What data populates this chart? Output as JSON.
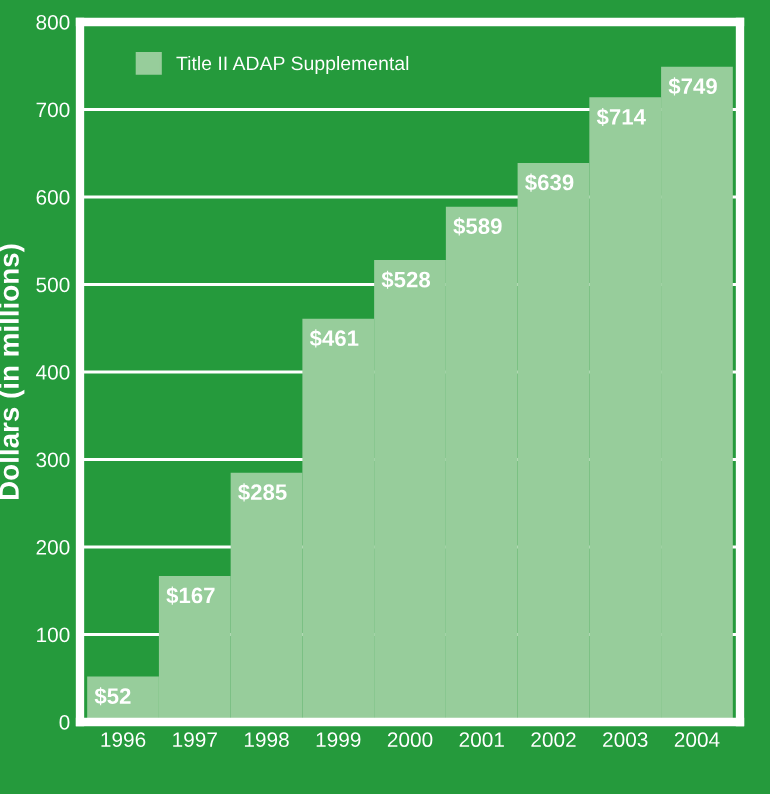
{
  "chart_data": {
    "type": "bar",
    "ylabel": "Dollars (in millions)",
    "categories": [
      "1996",
      "1997",
      "1998",
      "1999",
      "2000",
      "2001",
      "2002",
      "2003",
      "2004"
    ],
    "series": [
      {
        "name": "Title II ADAP Supplemental",
        "color": "#97cd9b",
        "values": [
          52,
          167,
          285,
          461,
          528,
          589,
          639,
          714,
          749
        ],
        "value_labels": [
          "$52",
          "$167",
          "$285",
          "$461",
          "$528",
          "$589",
          "$639",
          "$714",
          "$749"
        ]
      }
    ],
    "ylim": [
      0,
      800
    ],
    "yticks": [
      0,
      100,
      200,
      300,
      400,
      500,
      600,
      700,
      800
    ],
    "grid": "y",
    "legend": "top left"
  }
}
